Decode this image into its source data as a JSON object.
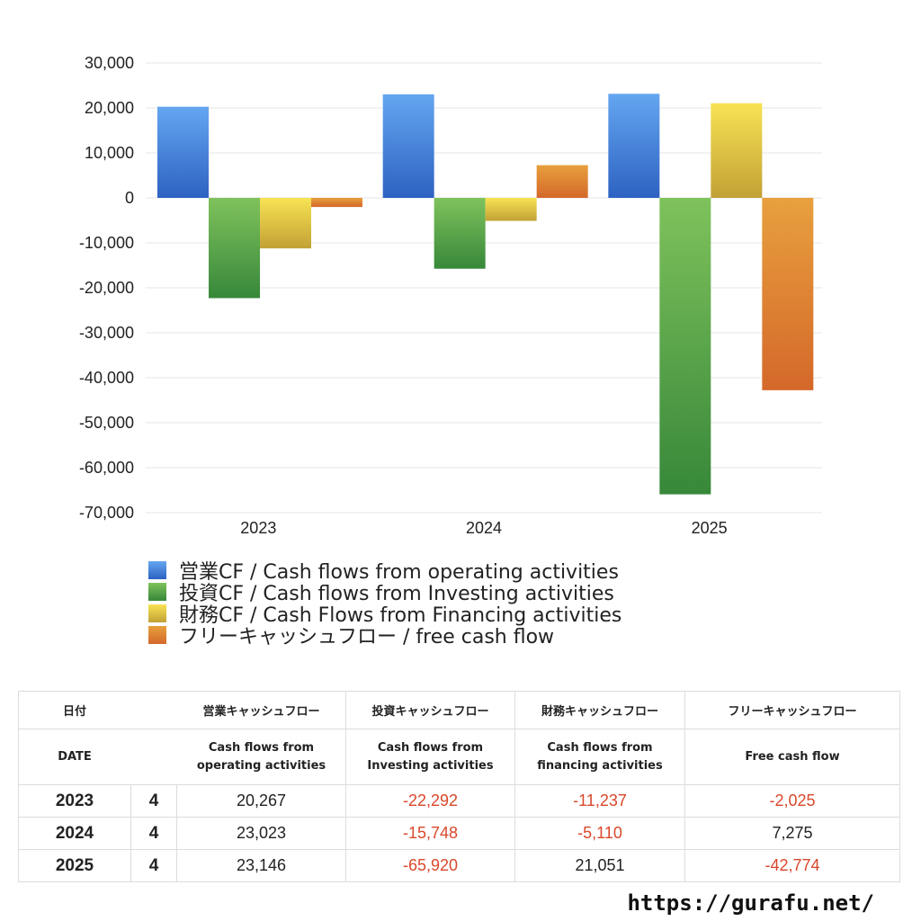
{
  "chart_data": {
    "type": "bar",
    "categories": [
      "2023",
      "2024",
      "2025"
    ],
    "series": [
      {
        "name": "営業CF / Cash flows from operating activities",
        "values": [
          20267,
          23023,
          23146
        ]
      },
      {
        "name": "投資CF / Cash flows from Investing activities",
        "values": [
          -22292,
          -15748,
          -65920
        ]
      },
      {
        "name": "財務CF / Cash Flows from Financing activities",
        "values": [
          -11237,
          -5110,
          21051
        ]
      },
      {
        "name": "フリーキャッシュフロー / free cash flow",
        "values": [
          -2025,
          7275,
          -42774
        ]
      }
    ],
    "ylim": [
      -70000,
      30000
    ],
    "yticks": [
      30000,
      20000,
      10000,
      0,
      -10000,
      -20000,
      -30000,
      -40000,
      -50000,
      -60000,
      -70000
    ],
    "ytick_labels": [
      "30,000",
      "20,000",
      "10,000",
      "0",
      "-10,000",
      "-20,000",
      "-30,000",
      "-40,000",
      "-50,000",
      "-60,000",
      "-70,000"
    ],
    "grid": true,
    "legend_position": "bottom-left",
    "colors": [
      {
        "top": "#64a6f0",
        "bottom": "#2d62c2"
      },
      {
        "top": "#7fc25c",
        "bottom": "#37883a"
      },
      {
        "top": "#f7e354",
        "bottom": "#c2a135"
      },
      {
        "top": "#e8a03e",
        "bottom": "#d4682a"
      }
    ]
  },
  "table": {
    "header_jp": [
      "日付",
      "",
      "営業キャッシュフロー",
      "投資キャッシュフロー",
      "財務キャッシュフロー",
      "フリーキャッシュフロー"
    ],
    "header_en": [
      "DATE",
      "",
      "Cash flows from operating activities",
      "Cash flows from Investing activities",
      "Cash flows from financing activities",
      "Free cash flow"
    ],
    "header_en_lines": [
      [
        "DATE"
      ],
      [
        ""
      ],
      [
        "Cash flows from",
        "operating activities"
      ],
      [
        "Cash flows from",
        "Investing activities"
      ],
      [
        "Cash flows from",
        "financing activities"
      ],
      [
        "Free cash flow"
      ]
    ],
    "rows": [
      {
        "year": "2023",
        "q": "4",
        "values": [
          "20,267",
          "-22,292",
          "-11,237",
          "-2,025"
        ]
      },
      {
        "year": "2024",
        "q": "4",
        "values": [
          "23,023",
          "-15,748",
          "-5,110",
          "7,275"
        ]
      },
      {
        "year": "2025",
        "q": "4",
        "values": [
          "23,146",
          "-65,920",
          "21,051",
          "-42,774"
        ]
      }
    ],
    "negative_color": "#d9482b"
  },
  "footer": {
    "url": "https://gurafu.net/"
  }
}
